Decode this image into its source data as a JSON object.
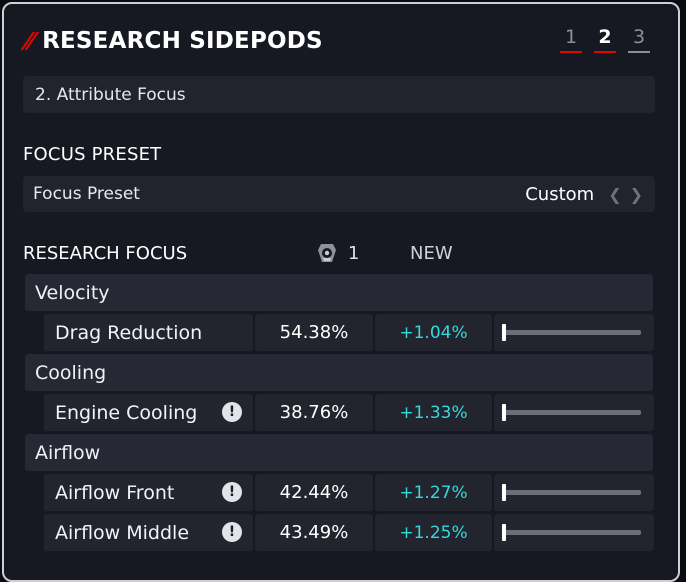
{
  "header": {
    "title": "RESEARCH SIDEPODS",
    "steps": [
      {
        "label": "1",
        "active": false
      },
      {
        "label": "2",
        "active": true
      },
      {
        "label": "3",
        "active": false
      }
    ]
  },
  "attribute_focus": {
    "label": "2. Attribute Focus"
  },
  "focus_preset": {
    "section_title": "FOCUS PRESET",
    "label": "Focus Preset",
    "value": "Custom",
    "prev_icon": "chevron-left-icon",
    "next_icon": "chevron-right-icon"
  },
  "research_focus": {
    "section_title": "RESEARCH FOCUS",
    "level_icon": "research-level-icon",
    "level": "1",
    "new_label": "NEW",
    "categories": [
      {
        "name": "Velocity",
        "items": [
          {
            "name": "Drag Reduction",
            "value": "54.38%",
            "new": "+1.04%",
            "warning": false,
            "allocation": 0.0
          }
        ]
      },
      {
        "name": "Cooling",
        "items": [
          {
            "name": "Engine Cooling",
            "value": "38.76%",
            "new": "+1.33%",
            "warning": true,
            "allocation": 0.0
          }
        ]
      },
      {
        "name": "Airflow",
        "items": [
          {
            "name": "Airflow Front",
            "value": "42.44%",
            "new": "+1.27%",
            "warning": true,
            "allocation": 0.0
          },
          {
            "name": "Airflow Middle",
            "value": "43.49%",
            "new": "+1.25%",
            "warning": true,
            "allocation": 0.0
          }
        ]
      }
    ]
  },
  "colors": {
    "accent_red": "#e10600",
    "new_value_cyan": "#35d9d9"
  }
}
